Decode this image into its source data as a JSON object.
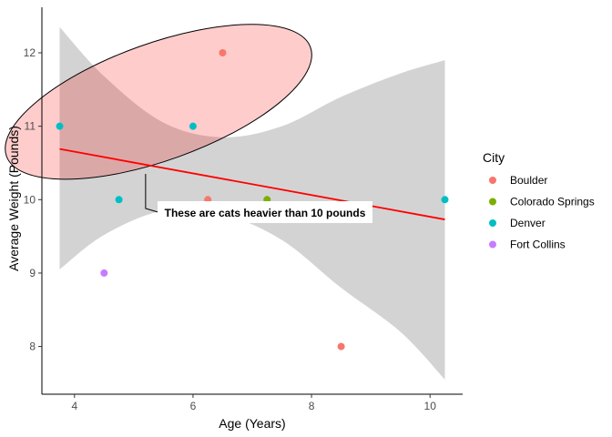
{
  "chart_data": {
    "type": "scatter",
    "title": "",
    "xlabel": "Age (Years)",
    "ylabel": "Average Weight (Pounds)",
    "xlim": [
      3.45,
      10.55
    ],
    "ylim": [
      7.35,
      12.62
    ],
    "x_ticks": [
      4,
      6,
      8,
      10
    ],
    "y_ticks": [
      8,
      9,
      10,
      11,
      12
    ],
    "grid": false,
    "legend": {
      "title": "City",
      "position": "right",
      "entries": [
        {
          "name": "Boulder",
          "color": "#F8766D"
        },
        {
          "name": "Colorado Springs",
          "color": "#7CAE00"
        },
        {
          "name": "Denver",
          "color": "#00BFC4"
        },
        {
          "name": "Fort Collins",
          "color": "#C77CFF"
        }
      ]
    },
    "points": [
      {
        "x": 6.5,
        "y": 12.0,
        "city": "Boulder"
      },
      {
        "x": 6.25,
        "y": 10.0,
        "city": "Boulder"
      },
      {
        "x": 8.5,
        "y": 8.0,
        "city": "Boulder"
      },
      {
        "x": 7.25,
        "y": 10.0,
        "city": "Colorado Springs"
      },
      {
        "x": 3.75,
        "y": 11.0,
        "city": "Denver"
      },
      {
        "x": 6.0,
        "y": 11.0,
        "city": "Denver"
      },
      {
        "x": 4.75,
        "y": 10.0,
        "city": "Denver"
      },
      {
        "x": 10.25,
        "y": 10.0,
        "city": "Denver"
      },
      {
        "x": 4.5,
        "y": 9.0,
        "city": "Fort Collins"
      }
    ],
    "regression": {
      "method": "lm",
      "color": "#FF0000",
      "x": [
        3.75,
        4.5,
        5.5,
        6.5,
        7.5,
        8.5,
        9.5,
        10.25
      ],
      "fit": [
        10.69,
        10.6,
        10.46,
        10.33,
        10.2,
        10.06,
        9.87,
        9.73
      ],
      "ci_lower": [
        9.05,
        9.52,
        9.85,
        9.8,
        9.45,
        8.8,
        8.2,
        7.55
      ],
      "ci_upper": [
        12.35,
        11.68,
        11.05,
        10.85,
        11.0,
        11.4,
        11.72,
        11.9
      ]
    },
    "highlight_ellipse": {
      "description_points_x": [
        3.75,
        6.0,
        6.5
      ],
      "description_points_y": [
        11.0,
        11.0,
        12.0
      ],
      "fill": "#FF0000",
      "fill_opacity": 0.2,
      "stroke": "#000000"
    },
    "annotation": {
      "text": "These are cats heavier than 10 pounds",
      "anchor_x": 5.2,
      "anchor_y": 10.5
    }
  }
}
